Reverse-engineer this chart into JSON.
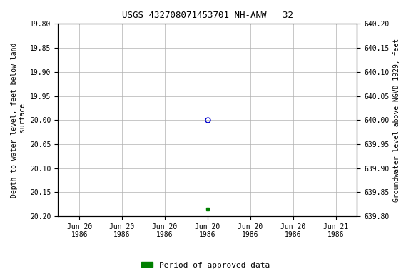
{
  "title": "USGS 432708071453701 NH-ANW   32",
  "ylabel_left": "Depth to water level, feet below land\n surface",
  "ylabel_right": "Groundwater level above NGVD 1929, feet",
  "yticks_left": [
    19.8,
    19.85,
    19.9,
    19.95,
    20.0,
    20.05,
    20.1,
    20.15,
    20.2
  ],
  "yticks_right": [
    640.2,
    640.15,
    640.1,
    640.05,
    640.0,
    639.95,
    639.9,
    639.85,
    639.8
  ],
  "open_circle_value": 20.0,
  "green_square_value": 20.185,
  "open_circle_color": "#0000cc",
  "green_square_color": "#008000",
  "grid_color": "#b0b0b0",
  "background_color": "#ffffff",
  "legend_label": "Period of approved data",
  "legend_color": "#008000",
  "xtick_labels": [
    "Jun 20\n1986",
    "Jun 20\n1986",
    "Jun 20\n1986",
    "Jun 20\n1986",
    "Jun 20\n1986",
    "Jun 20\n1986",
    "Jun 21\n1986"
  ]
}
